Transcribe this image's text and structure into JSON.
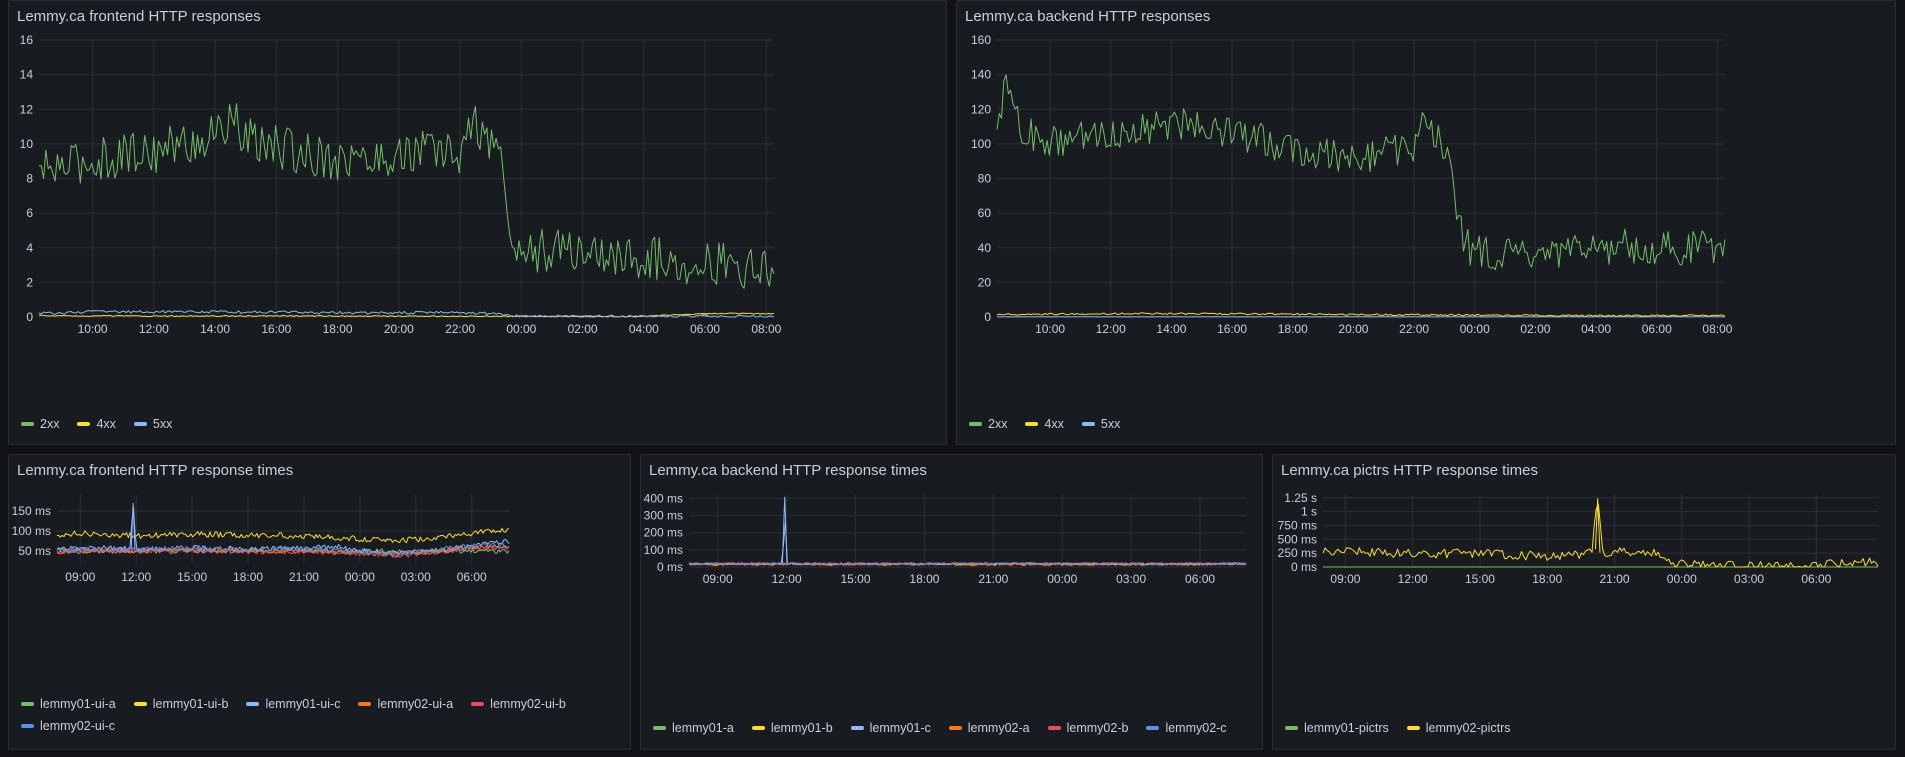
{
  "colors": {
    "green": "#73bf69",
    "yellow": "#fade2a",
    "light_blue": "#8ab8ff",
    "orange": "#ff780a",
    "red": "#f2495c",
    "blue": "#5794f2",
    "panel_bg": "#181b1f",
    "grid": "#2c2f35",
    "axis_text": "#ccccdc"
  },
  "chart_data": [
    {
      "type": "line",
      "title": "Lemmy.ca frontend HTTP responses",
      "x_range": [
        "08:15",
        "08:15 next day"
      ],
      "x_ticks": [
        "10:00",
        "12:00",
        "14:00",
        "16:00",
        "18:00",
        "20:00",
        "22:00",
        "00:00",
        "02:00",
        "04:00",
        "06:00",
        "08:00"
      ],
      "y_ticks": [
        "0",
        "2",
        "4",
        "6",
        "8",
        "10",
        "12",
        "14",
        "16"
      ],
      "ylim": [
        0,
        16
      ],
      "grid": true,
      "legend_position": "bottom-left",
      "series": [
        {
          "name": "2xx",
          "color": "#73bf69",
          "x": [
            "08:15",
            "09:00",
            "10:00",
            "11:00",
            "12:00",
            "13:00",
            "14:00",
            "14:30",
            "15:00",
            "16:00",
            "17:00",
            "18:00",
            "19:00",
            "20:00",
            "21:00",
            "22:00",
            "22:30",
            "23:00",
            "23:20",
            "23:40",
            "00:00",
            "01:00",
            "02:00",
            "03:00",
            "04:00",
            "05:00",
            "06:00",
            "07:00",
            "07:30",
            "08:00",
            "08:15"
          ],
          "values": [
            8.4,
            8.7,
            9.0,
            9.4,
            9.6,
            10.0,
            10.4,
            11.6,
            10.2,
            9.8,
            9.4,
            9.2,
            9.0,
            9.4,
            9.6,
            9.4,
            11.2,
            10.0,
            9.6,
            4.0,
            3.8,
            3.8,
            3.8,
            3.5,
            3.4,
            3.2,
            3.2,
            3.0,
            2.8,
            2.6,
            3.2
          ],
          "noise": 1.3
        },
        {
          "name": "4xx",
          "color": "#fade2a",
          "x": [
            "08:15",
            "12:00",
            "16:00",
            "20:00",
            "00:00",
            "04:00",
            "06:00",
            "08:15"
          ],
          "values": [
            0.08,
            0.05,
            0.06,
            0.05,
            0.04,
            0.04,
            0.2,
            0.05
          ],
          "noise": 0.03
        },
        {
          "name": "5xx",
          "color": "#8ab8ff",
          "x": [
            "08:15",
            "10:00",
            "14:00",
            "18:00",
            "22:00",
            "23:00",
            "00:00",
            "04:00",
            "08:15"
          ],
          "values": [
            0.2,
            0.3,
            0.3,
            0.25,
            0.25,
            0.2,
            0.05,
            0.03,
            0.03
          ],
          "noise": 0.08
        }
      ]
    },
    {
      "type": "line",
      "title": "Lemmy.ca backend HTTP responses",
      "x_range": [
        "08:15",
        "08:15 next day"
      ],
      "x_ticks": [
        "10:00",
        "12:00",
        "14:00",
        "16:00",
        "18:00",
        "20:00",
        "22:00",
        "00:00",
        "02:00",
        "04:00",
        "06:00",
        "08:00"
      ],
      "y_ticks": [
        "0",
        "20",
        "40",
        "60",
        "80",
        "100",
        "120",
        "140",
        "160"
      ],
      "ylim": [
        0,
        160
      ],
      "grid": true,
      "legend_position": "bottom-left",
      "series": [
        {
          "name": "2xx",
          "color": "#73bf69",
          "x": [
            "08:15",
            "08:40",
            "09:00",
            "10:00",
            "11:00",
            "12:00",
            "13:00",
            "14:00",
            "15:00",
            "16:00",
            "17:00",
            "18:00",
            "19:00",
            "20:00",
            "21:00",
            "22:00",
            "22:20",
            "23:00",
            "23:20",
            "23:40",
            "00:00",
            "01:00",
            "02:00",
            "03:00",
            "04:00",
            "05:00",
            "06:00",
            "07:00",
            "08:15"
          ],
          "values": [
            118,
            135,
            108,
            100,
            104,
            106,
            108,
            112,
            112,
            106,
            102,
            98,
            94,
            92,
            95,
            98,
            112,
            98,
            72,
            42,
            38,
            36,
            34,
            36,
            40,
            41,
            40,
            40,
            42
          ],
          "noise": 10
        },
        {
          "name": "4xx",
          "color": "#fade2a",
          "x": [
            "08:15",
            "14:00",
            "20:00",
            "00:00",
            "04:00",
            "08:15"
          ],
          "values": [
            1.5,
            2.0,
            1.5,
            1.0,
            0.8,
            1.0
          ],
          "noise": 0.5
        },
        {
          "name": "5xx",
          "color": "#8ab8ff",
          "x": [
            "08:15",
            "08:15 next day"
          ],
          "values": [
            0.1,
            0.1
          ],
          "noise": 0.05
        }
      ]
    },
    {
      "type": "line",
      "title": "Lemmy.ca frontend HTTP response times",
      "x_range": [
        "07:45",
        "08:00 next day"
      ],
      "x_ticks": [
        "09:00",
        "12:00",
        "15:00",
        "18:00",
        "21:00",
        "00:00",
        "03:00",
        "06:00"
      ],
      "y_ticks": [
        "50 ms",
        "100 ms",
        "150 ms"
      ],
      "ylim": [
        20,
        190
      ],
      "y_unit": "ms",
      "grid": true,
      "legend_position": "bottom-left",
      "series": [
        {
          "name": "lemmy01-ui-a",
          "color": "#73bf69",
          "x": [
            "07:45",
            "08:00 next day"
          ],
          "values": [
            50,
            50
          ],
          "noise": 6
        },
        {
          "name": "lemmy01-ui-b",
          "color": "#fade2a",
          "x": [
            "07:45",
            "09:00",
            "12:00",
            "15:00",
            "18:00",
            "21:00",
            "00:00",
            "02:00",
            "04:00",
            "06:00",
            "07:30",
            "08:00"
          ],
          "values": [
            90,
            95,
            88,
            92,
            90,
            88,
            80,
            76,
            82,
            95,
            100,
            104
          ],
          "noise": 7
        },
        {
          "name": "lemmy01-ui-c",
          "color": "#8ab8ff",
          "x": [
            "07:45",
            "09:00",
            "11:40",
            "11:50",
            "12:00",
            "15:00",
            "18:00",
            "21:00",
            "23:00",
            "00:00",
            "02:00",
            "04:00",
            "06:00",
            "07:30",
            "08:00"
          ],
          "values": [
            55,
            58,
            55,
            170,
            55,
            58,
            55,
            58,
            60,
            50,
            45,
            52,
            60,
            72,
            70
          ],
          "noise": 7
        },
        {
          "name": "lemmy02-ui-a",
          "color": "#ff780a",
          "x": [
            "07:45",
            "09:00",
            "12:00",
            "15:00",
            "18:00",
            "21:00",
            "00:00",
            "02:00",
            "04:00",
            "06:00",
            "08:00"
          ],
          "values": [
            48,
            52,
            50,
            52,
            50,
            50,
            45,
            40,
            48,
            60,
            58
          ],
          "noise": 6
        },
        {
          "name": "lemmy02-ui-b",
          "color": "#f2495c",
          "x": [
            "07:45",
            "09:00",
            "12:00",
            "15:00",
            "18:00",
            "21:00",
            "00:00",
            "02:00",
            "04:00",
            "06:00",
            "08:00"
          ],
          "values": [
            47,
            50,
            49,
            50,
            48,
            49,
            44,
            39,
            46,
            58,
            56
          ],
          "noise": 6
        },
        {
          "name": "lemmy02-ui-c",
          "color": "#5794f2",
          "x": [
            "07:45",
            "09:00",
            "12:00",
            "15:00",
            "18:00",
            "21:00",
            "00:00",
            "02:00",
            "04:00",
            "06:00",
            "08:00"
          ],
          "values": [
            52,
            55,
            54,
            56,
            54,
            55,
            48,
            42,
            50,
            66,
            64
          ],
          "noise": 7
        }
      ]
    },
    {
      "type": "line",
      "title": "Lemmy.ca backend HTTP response times",
      "x_range": [
        "07:45",
        "08:00 next day"
      ],
      "x_ticks": [
        "09:00",
        "12:00",
        "15:00",
        "18:00",
        "21:00",
        "00:00",
        "03:00",
        "06:00"
      ],
      "y_ticks": [
        "0 ms",
        "100 ms",
        "200 ms",
        "300 ms",
        "400 ms"
      ],
      "ylim": [
        0,
        420
      ],
      "y_unit": "ms",
      "grid": true,
      "legend_position": "bottom-left",
      "series": [
        {
          "name": "lemmy01-a",
          "color": "#73bf69",
          "x": [
            "07:45",
            "08:00 next day"
          ],
          "values": [
            18,
            18
          ],
          "noise": 6
        },
        {
          "name": "lemmy01-b",
          "color": "#fade2a",
          "x": [
            "07:45",
            "08:00 next day"
          ],
          "values": [
            16,
            16
          ],
          "noise": 6
        },
        {
          "name": "lemmy01-c",
          "color": "#8ab8ff",
          "x": [
            "07:45",
            "11:50",
            "11:55",
            "12:00",
            "08:00"
          ],
          "values": [
            18,
            18,
            410,
            18,
            18
          ],
          "noise": 6
        },
        {
          "name": "lemmy02-a",
          "color": "#ff780a",
          "x": [
            "07:45",
            "08:00 next day"
          ],
          "values": [
            17,
            17
          ],
          "noise": 7
        },
        {
          "name": "lemmy02-b",
          "color": "#f2495c",
          "x": [
            "07:45",
            "08:00 next day"
          ],
          "values": [
            19,
            19
          ],
          "noise": 7
        },
        {
          "name": "lemmy02-c",
          "color": "#5794f2",
          "x": [
            "07:45",
            "08:00 next day"
          ],
          "values": [
            20,
            20
          ],
          "noise": 6
        }
      ]
    },
    {
      "type": "line",
      "title": "Lemmy.ca pictrs HTTP response times",
      "x_range": [
        "08:00",
        "08:45 next day"
      ],
      "x_ticks": [
        "09:00",
        "12:00",
        "15:00",
        "18:00",
        "21:00",
        "00:00",
        "03:00",
        "06:00"
      ],
      "y_ticks": [
        "0 ms",
        "250 ms",
        "500 ms",
        "750 ms",
        "1 s",
        "1.25 s"
      ],
      "ylim": [
        0,
        1300
      ],
      "y_unit": "ms",
      "grid": true,
      "legend_position": "bottom-left",
      "series": [
        {
          "name": "lemmy01-pictrs",
          "color": "#73bf69",
          "x": [
            "08:00",
            "08:45 next day"
          ],
          "values": [
            0,
            0
          ],
          "noise": 0
        },
        {
          "name": "lemmy02-pictrs",
          "color": "#fade2a",
          "x": [
            "08:00",
            "09:00",
            "11:00",
            "13:00",
            "15:00",
            "16:00",
            "18:00",
            "19:30",
            "20:00",
            "20:15",
            "20:30",
            "22:00",
            "23:00",
            "23:30",
            "01:00",
            "03:00",
            "05:00",
            "07:00",
            "07:30",
            "08:45"
          ],
          "values": [
            300,
            280,
            250,
            240,
            250,
            220,
            200,
            220,
            320,
            1240,
            260,
            280,
            230,
            60,
            30,
            20,
            30,
            60,
            90,
            30
          ],
          "noise": 80
        }
      ]
    }
  ]
}
